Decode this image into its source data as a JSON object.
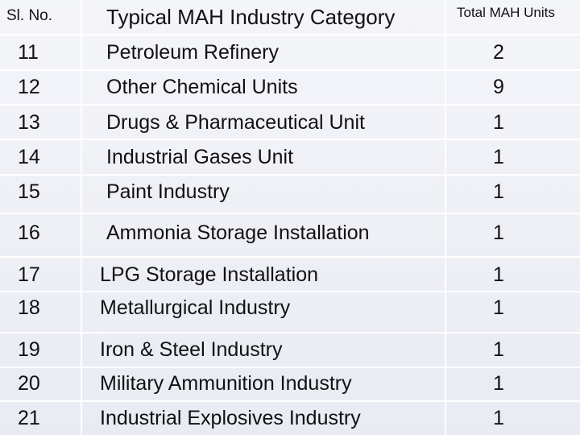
{
  "table": {
    "headers": {
      "sl_no": "Sl. No.",
      "category": "Typical MAH Industry Category",
      "total": "Total MAH Units"
    },
    "rows": [
      {
        "sl": "11",
        "category": "Petroleum Refinery",
        "total": "2"
      },
      {
        "sl": "12",
        "category": "Other Chemical Units",
        "total": "9"
      },
      {
        "sl": "13",
        "category": "Drugs & Pharmaceutical Unit",
        "total": "1"
      },
      {
        "sl": "14",
        "category": "Industrial Gases Unit",
        "total": "1"
      },
      {
        "sl": "15",
        "category": "Paint Industry",
        "total": "1"
      },
      {
        "sl": "16",
        "category": "Ammonia Storage Installation",
        "total": "1"
      },
      {
        "sl": "17",
        "category": "LPG Storage Installation",
        "total": "1"
      },
      {
        "sl": "18",
        "category": "Metallurgical Industry",
        "total": "1"
      },
      {
        "sl": "19",
        "category": "Iron & Steel Industry",
        "total": "1"
      },
      {
        "sl": "20",
        "category": "Military Ammunition Industry",
        "total": "1"
      },
      {
        "sl": "21",
        "category": "Industrial Explosives Industry",
        "total": "1"
      }
    ]
  }
}
